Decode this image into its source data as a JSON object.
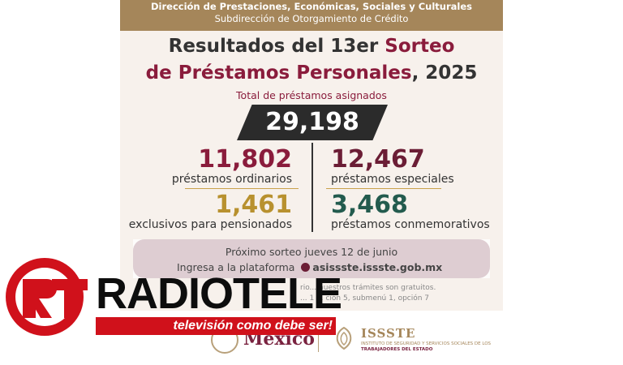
{
  "header": {
    "line1": "Dirección de Prestaciones, Económicas, Sociales y Culturales",
    "line2": "Subdirección de Otorgamiento de Crédito"
  },
  "title": {
    "part1": "Resultados del 13er ",
    "part1_accent": "Sorteo",
    "part2": "de Préstamos Personales",
    "part2_tail": ", 2025"
  },
  "total": {
    "label": "Total de préstamos asignados",
    "value": "29,198"
  },
  "stats": {
    "ordinarios": {
      "value": "11,802",
      "label": "préstamos ordinarios",
      "color": "#8a1c3c"
    },
    "especiales": {
      "value": "12,467",
      "label": "préstamos especiales",
      "color": "#6b1d35"
    },
    "pensionados": {
      "value": "1,461",
      "label": "exclusivos para pensionados",
      "color": "#b8912f"
    },
    "conmemorativos": {
      "value": "3,468",
      "label": "préstamos conmemorativos",
      "color": "#235b4e"
    }
  },
  "next": {
    "line1": "Próximo sorteo jueves 12 de junio",
    "line2_prefix": "Ingresa a la plataforma",
    "url": "asissste.issste.gob.mx"
  },
  "fine_print": {
    "line1": "rio... nuestros trámites son gratuitos.",
    "line2": "... 1 ... ción  5, submenú  1, opción  7"
  },
  "footer": {
    "gov": "México",
    "issste": "ISSSTE",
    "issste_sub": "INSTITUTO DE SEGURIDAD Y SERVICIOS SOCIALES DE LOS",
    "issste_sub2": "TRABAJADORES DEL ESTADO"
  },
  "watermark": {
    "logo": "RT",
    "name": "RADIOTELE",
    "slogan": "televisión como debe ser!",
    "logo_color": "#d0111b"
  }
}
